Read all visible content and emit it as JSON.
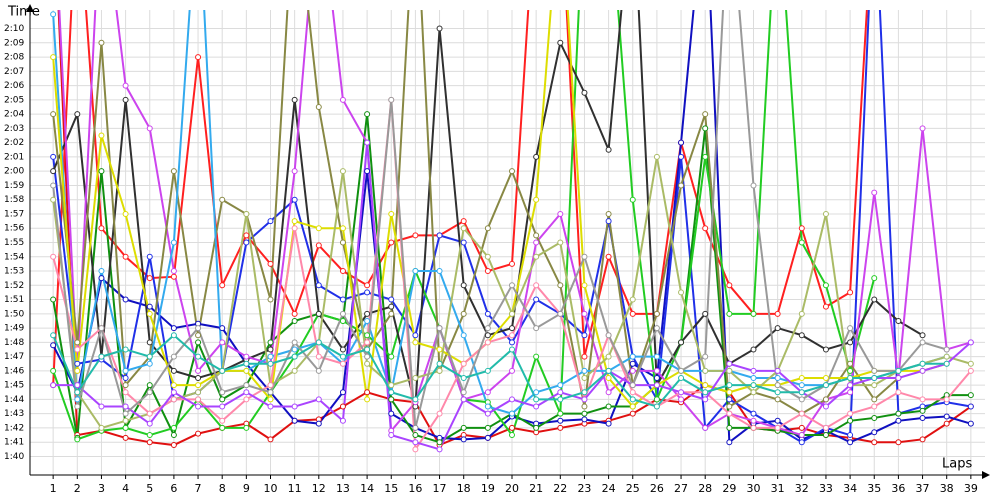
{
  "chart_data": {
    "type": "line",
    "y_label": "Time",
    "x_label": "Laps",
    "xlim": [
      0,
      39.6
    ],
    "ylim": [
      98.7,
      131.3
    ],
    "grid": true,
    "xticks": [
      1,
      2,
      3,
      4,
      5,
      6,
      7,
      8,
      9,
      10,
      11,
      12,
      13,
      14,
      15,
      16,
      17,
      18,
      19,
      20,
      21,
      22,
      23,
      24,
      25,
      26,
      27,
      28,
      29,
      30,
      31,
      32,
      33,
      34,
      35,
      36,
      37,
      38,
      39
    ],
    "yticks": [
      {
        "value": 100,
        "label": "1:40"
      },
      {
        "value": 101,
        "label": "1:41"
      },
      {
        "value": 102,
        "label": "1:42"
      },
      {
        "value": 103,
        "label": "1:43"
      },
      {
        "value": 104,
        "label": "1:44"
      },
      {
        "value": 105,
        "label": "1:45"
      },
      {
        "value": 106,
        "label": "1:46"
      },
      {
        "value": 107,
        "label": "1:47"
      },
      {
        "value": 108,
        "label": "1:48"
      },
      {
        "value": 109,
        "label": "1:49"
      },
      {
        "value": 110,
        "label": "1:50"
      },
      {
        "value": 111,
        "label": "1:51"
      },
      {
        "value": 112,
        "label": "1:52"
      },
      {
        "value": 113,
        "label": "1:53"
      },
      {
        "value": 114,
        "label": "1:54"
      },
      {
        "value": 115,
        "label": "1:55"
      },
      {
        "value": 116,
        "label": "1:56"
      },
      {
        "value": 117,
        "label": "1:57"
      },
      {
        "value": 118,
        "label": "1:58"
      },
      {
        "value": 119,
        "label": "1:59"
      },
      {
        "value": 120,
        "label": "2:00"
      },
      {
        "value": 121,
        "label": "2:01"
      },
      {
        "value": 122,
        "label": "2:02"
      },
      {
        "value": 123,
        "label": "2:03"
      },
      {
        "value": 124,
        "label": "2:04"
      },
      {
        "value": 125,
        "label": "2:05"
      },
      {
        "value": 126,
        "label": "2:06"
      },
      {
        "value": 127,
        "label": "2:07"
      },
      {
        "value": 128,
        "label": "2:08"
      },
      {
        "value": 129,
        "label": "2:09"
      },
      {
        "value": 130,
        "label": "2:10"
      }
    ],
    "x": [
      1,
      2,
      3,
      4,
      5,
      6,
      7,
      8,
      9,
      10,
      11,
      12,
      13,
      14,
      15,
      16,
      17,
      18,
      19,
      20,
      21,
      22,
      23,
      24,
      25,
      26,
      27,
      28,
      29,
      30,
      31,
      32,
      33,
      34,
      35,
      36,
      37,
      38,
      39
    ],
    "series": [
      {
        "color": "#e01010",
        "values": [
          140,
          101.5,
          101.8,
          101.3,
          101.0,
          100.8,
          101.6,
          102.0,
          102.3,
          101.2,
          102.5,
          102.6,
          103.5,
          104.5,
          104.0,
          103.8,
          100.8,
          101.5,
          101.3,
          102.0,
          101.7,
          102.0,
          102.3,
          102.5,
          103.0,
          104.0,
          103.8,
          105,
          104.5,
          102.0,
          101.8,
          102.0,
          101.5,
          101.3,
          101.0,
          101.0,
          101.2,
          102.3,
          103.5
        ]
      },
      {
        "color": "#ff2020",
        "values": [
          105,
          140,
          116,
          114,
          112.5,
          112.6,
          128,
          112,
          115.5,
          113.5,
          110,
          114.8,
          113,
          112,
          115,
          115.5,
          115.5,
          116.5,
          113,
          113.5,
          140,
          140,
          107,
          114,
          110,
          110,
          122,
          116,
          112,
          110,
          110,
          116,
          110.5,
          111.5,
          140,
          null,
          null,
          null,
          null
        ]
      },
      {
        "color": "#1010c0",
        "values": [
          107.8,
          104.5,
          112.5,
          111,
          110.5,
          109,
          109.3,
          109,
          106.5,
          104.5,
          102.5,
          102.3,
          104.5,
          120,
          103,
          102,
          101.3,
          101.2,
          101.3,
          102.8,
          102.3,
          102.5,
          102.6,
          102.3,
          106.5,
          105.5,
          122,
          140,
          101,
          102.3,
          102.5,
          101.2,
          101.8,
          101,
          101.7,
          102.5,
          102.7,
          102.8,
          102.3
        ]
      },
      {
        "color": "#2030e8",
        "values": [
          121,
          106.5,
          106.8,
          105.5,
          114,
          104,
          104.5,
          106,
          115,
          116.5,
          118,
          112,
          111,
          111.5,
          111,
          108.5,
          115.5,
          115,
          110,
          108,
          111,
          110,
          108.5,
          116.5,
          107,
          104,
          121,
          102,
          104,
          103,
          102,
          101,
          102,
          101.5,
          140,
          103,
          103.5,
          103.8,
          103.5
        ]
      },
      {
        "color": "#109010",
        "values": [
          111,
          101.3,
          120,
          102,
          105,
          101.5,
          108,
          104,
          105,
          108,
          109.5,
          110,
          109.5,
          124,
          104,
          101.5,
          101,
          102,
          102,
          103,
          102,
          103,
          103,
          103.5,
          103.5,
          105,
          108,
          123,
          102,
          102,
          101.8,
          101.5,
          101.5,
          102.5,
          102.7,
          103,
          103.2,
          104.3,
          104.3
        ]
      },
      {
        "color": "#22cc22",
        "values": [
          106,
          101.2,
          101.8,
          102,
          101.5,
          102,
          104,
          102,
          102,
          104.5,
          107,
          110,
          109.5,
          108.5,
          107,
          113,
          109,
          104,
          103.8,
          101.5,
          107,
          103,
          140,
          140,
          118,
          104,
          108,
          121,
          110,
          110,
          140,
          115,
          112,
          106,
          112.5,
          null,
          null,
          null,
          null
        ]
      },
      {
        "color": "#303030",
        "values": [
          120,
          124,
          107,
          125,
          108,
          106,
          105.5,
          106,
          106.8,
          107.5,
          125,
          110,
          107.5,
          110,
          110.5,
          103.5,
          130,
          112,
          108.5,
          109,
          121,
          129,
          125.5,
          121.5,
          140,
          105,
          108,
          110,
          106.5,
          107.5,
          109,
          108.5,
          107.5,
          108,
          111,
          109.5,
          108.5,
          null,
          null
        ]
      },
      {
        "color": "#cc44ee",
        "values": [
          140,
          106,
          140,
          126,
          123,
          113,
          106,
          108,
          107,
          106.5,
          120,
          140,
          125,
          122,
          101.8,
          103.8,
          109,
          104,
          104.5,
          106,
          115,
          117,
          110,
          104.5,
          106,
          106,
          104,
          102,
          103,
          102.5,
          102,
          101.5,
          104,
          104.5,
          118.5,
          105.5,
          123,
          107.5,
          108
        ]
      },
      {
        "color": "#888844",
        "values": [
          124,
          108,
          129,
          105,
          107,
          120,
          108.5,
          118,
          117,
          111,
          140,
          124.5,
          115,
          107.5,
          110,
          140,
          106,
          110,
          116,
          120,
          115.5,
          112,
          103.5,
          117,
          105,
          110,
          119,
          124,
          103.5,
          104.5,
          104,
          103,
          104,
          106.5,
          104,
          105.5,
          null,
          null,
          null
        ]
      },
      {
        "color": "#33aaee",
        "values": [
          131,
          104,
          113,
          106,
          106.5,
          115,
          140,
          106,
          106,
          107,
          107.5,
          108,
          106.5,
          109.5,
          104.5,
          113,
          113,
          108.5,
          103.5,
          103,
          104.5,
          105,
          106,
          106,
          107,
          107,
          106,
          106,
          106,
          105.5,
          105.5,
          105,
          105,
          105.5,
          105.5,
          106,
          106.5,
          107,
          null
        ]
      },
      {
        "color": "#dddd00",
        "values": [
          128,
          106,
          122.5,
          117,
          110,
          105,
          105,
          106,
          106,
          104,
          116.5,
          116,
          116,
          104,
          117,
          108,
          107.5,
          106.5,
          108,
          110,
          118,
          140,
          112,
          105.5,
          103.5,
          105,
          106,
          105,
          104.5,
          105,
          105,
          105.5,
          105.5,
          105.5,
          106,
          106,
          106,
          106.5,
          null
        ]
      },
      {
        "color": "#aabb66",
        "values": [
          118,
          104.5,
          102,
          102.5,
          103,
          104,
          104.5,
          106,
          117,
          105,
          106,
          108,
          120,
          106.5,
          105,
          105.5,
          106,
          116,
          114,
          110,
          114,
          115,
          105.5,
          107,
          111,
          121,
          111.5,
          106,
          106,
          104.5,
          106,
          110,
          117,
          105,
          105,
          106,
          106.5,
          107,
          106.5
        ]
      },
      {
        "color": "#ff88aa",
        "values": [
          114,
          107.5,
          109,
          104.5,
          103,
          104,
          104,
          102.5,
          104,
          105,
          116,
          107,
          106.5,
          108,
          125,
          100.5,
          103,
          106.5,
          108,
          108.5,
          112,
          110,
          104,
          108.5,
          104.5,
          103.5,
          104.5,
          104.5,
          103,
          102,
          102,
          103,
          102,
          103,
          103.5,
          104.5,
          104,
          104,
          106
        ]
      },
      {
        "color": "#aa44ff",
        "values": [
          105,
          105,
          103.5,
          103.5,
          102.3,
          104.5,
          103.5,
          103.5,
          104.5,
          103.5,
          103.5,
          104,
          102.5,
          122,
          101.5,
          101,
          100.5,
          104,
          103,
          104,
          103.5,
          104.5,
          104,
          106,
          105,
          105,
          104.5,
          104,
          106.5,
          106,
          106,
          104.5,
          103.5,
          105,
          105.5,
          105.5,
          106,
          106.5,
          108
        ]
      },
      {
        "color": "#999999",
        "values": [
          119,
          103.5,
          109,
          103,
          104.5,
          107,
          109,
          104.5,
          105,
          104.5,
          108,
          106,
          110,
          107,
          125,
          102,
          109,
          104.5,
          109,
          112,
          109,
          110,
          114,
          108.5,
          105,
          109,
          106,
          107,
          140,
          119,
          105,
          104,
          105,
          109,
          106,
          106,
          108,
          107.5,
          null
        ]
      },
      {
        "color": "#22bbaa",
        "values": [
          108.5,
          104.5,
          107,
          107.5,
          107,
          108.5,
          107,
          106,
          106.5,
          106.5,
          107,
          108,
          107,
          107.5,
          104.5,
          104,
          106.5,
          105.5,
          106,
          107.5,
          104,
          104,
          104.5,
          106,
          104,
          103.5,
          105.5,
          104.5,
          105,
          105,
          104.5,
          104.5,
          105,
          105.5,
          105.5,
          106,
          106.5,
          106.5,
          null
        ]
      }
    ]
  }
}
